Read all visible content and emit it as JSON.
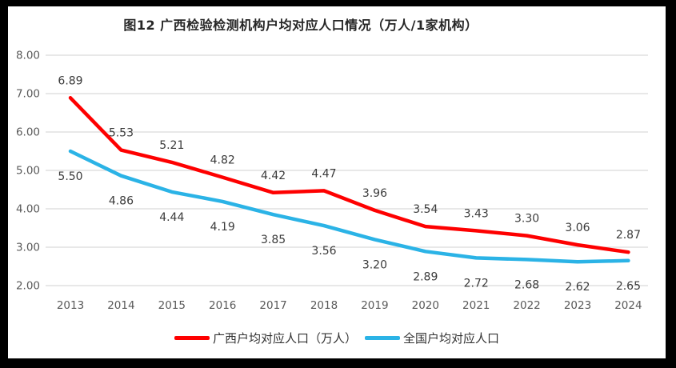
{
  "chart_data": {
    "type": "line",
    "title": "图12 广西检验检测机构户均对应人口情况（万人/1家机构）",
    "categories": [
      "2013",
      "2014",
      "2015",
      "2016",
      "2017",
      "2018",
      "2019",
      "2020",
      "2021",
      "2022",
      "2023",
      "2024"
    ],
    "series": [
      {
        "name": "广西户均对应人口（万人）",
        "color": "#FE0000",
        "label_position": "above",
        "values": [
          6.89,
          5.53,
          5.21,
          4.82,
          4.42,
          4.47,
          3.96,
          3.54,
          3.43,
          3.3,
          3.06,
          2.87
        ]
      },
      {
        "name": "全国户均对应人口",
        "color": "#2BB3E6",
        "label_position": "below",
        "values": [
          5.5,
          4.86,
          4.44,
          4.19,
          3.85,
          3.56,
          3.2,
          2.89,
          2.72,
          2.68,
          2.62,
          2.65
        ]
      }
    ],
    "ylim": [
      2,
      8
    ],
    "y_ticks": [
      "8.00",
      "7.00",
      "6.00",
      "5.00",
      "4.00",
      "3.00",
      "2.00"
    ],
    "grid": true,
    "legend_position": "bottom",
    "data_labels_decimals": 2
  },
  "colors": {
    "grid": "#D9D9D9",
    "tick_text": "#595959",
    "label_text": "#3B3B3B",
    "title_text": "#262626",
    "frame": "#000000",
    "background": "#FFFFFF"
  }
}
